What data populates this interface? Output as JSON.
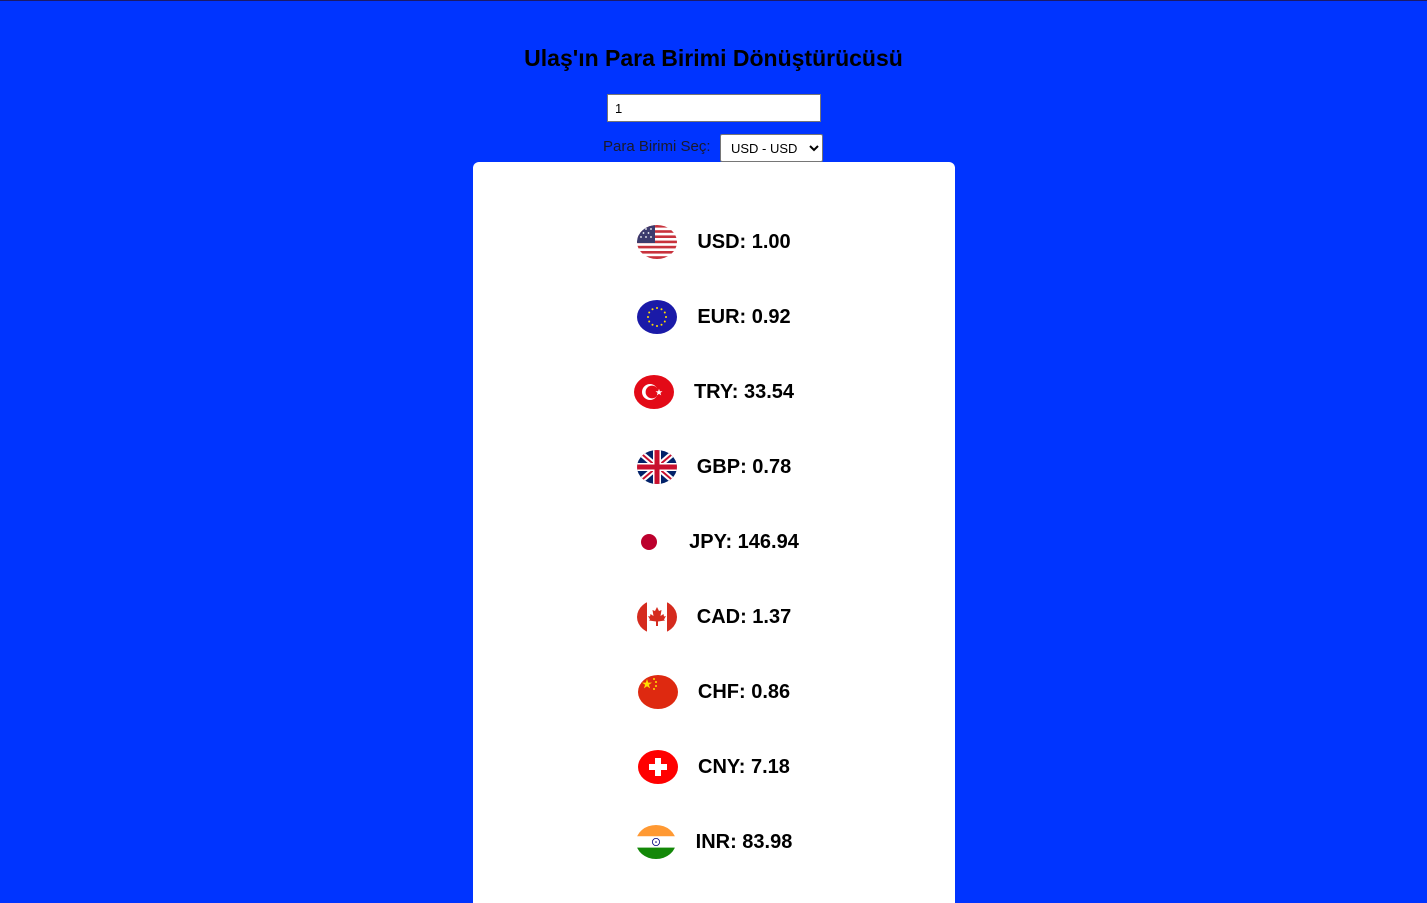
{
  "header": {
    "title": "Ulaş'ın Para Birimi Dönüştürücüsü"
  },
  "converter": {
    "amount_value": "1",
    "select_label": "Para Birimi Seç:",
    "selected_currency": "USD - USD"
  },
  "rates": [
    {
      "code": "USD",
      "text": "USD: 1.00",
      "flag": "us-flag-icon"
    },
    {
      "code": "EUR",
      "text": "EUR: 0.92",
      "flag": "eu-flag-icon"
    },
    {
      "code": "TRY",
      "text": "TRY: 33.54",
      "flag": "tr-flag-icon"
    },
    {
      "code": "GBP",
      "text": "GBP: 0.78",
      "flag": "gb-flag-icon"
    },
    {
      "code": "JPY",
      "text": "JPY: 146.94",
      "flag": "jp-flag-icon"
    },
    {
      "code": "CAD",
      "text": "CAD: 1.37",
      "flag": "ca-flag-icon"
    },
    {
      "code": "CHF",
      "text": "CHF: 0.86",
      "flag": "cn-flag-icon"
    },
    {
      "code": "CNY",
      "text": "CNY: 7.18",
      "flag": "ch-flag-icon"
    },
    {
      "code": "INR",
      "text": "INR: 83.98",
      "flag": "in-flag-icon"
    }
  ],
  "colors": {
    "background": "#0034ff",
    "card": "#ffffff"
  }
}
